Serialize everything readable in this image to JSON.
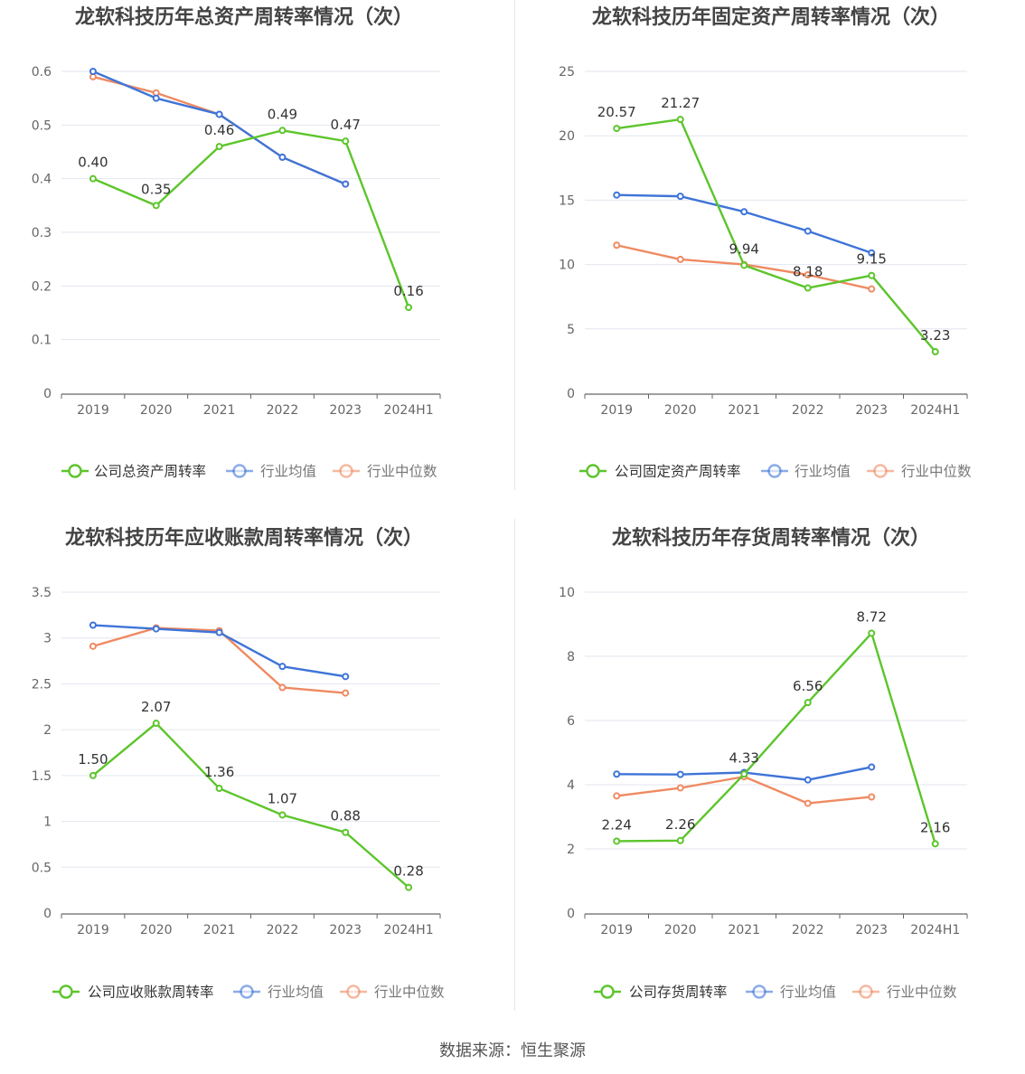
{
  "footer": "数据来源：恒生聚源",
  "colors": {
    "company": "#5cc52b",
    "avg": "#3e74d8",
    "median": "#ef8a62"
  },
  "chart_data": [
    {
      "type": "line",
      "title": "龙软科技历年总资产周转率情况（次）",
      "categories": [
        "2019",
        "2020",
        "2021",
        "2022",
        "2023",
        "2024H1"
      ],
      "ylim": [
        0,
        0.6
      ],
      "yticks": [
        0,
        0.1,
        0.2,
        0.3,
        0.4,
        0.5,
        0.6
      ],
      "ytick_labels": [
        "0",
        "0.1",
        "0.2",
        "0.3",
        "0.4",
        "0.5",
        "0.6"
      ],
      "legend_position": "bottom",
      "series": [
        {
          "name": "公司总资产周转率",
          "color": "#5cc52b",
          "values": [
            0.4,
            0.35,
            0.46,
            0.49,
            0.47,
            0.16
          ],
          "labels": [
            "0.40",
            "0.35",
            "0.46",
            "0.49",
            "0.47",
            "0.16"
          ]
        },
        {
          "name": "行业均值",
          "color": "#3e74d8",
          "values": [
            0.6,
            0.55,
            0.52,
            0.44,
            0.39,
            null
          ]
        },
        {
          "name": "行业中位数",
          "color": "#ef8a62",
          "values": [
            0.59,
            0.56,
            0.52,
            0.44,
            0.39,
            null
          ]
        }
      ]
    },
    {
      "type": "line",
      "title": "龙软科技历年固定资产周转率情况（次）",
      "categories": [
        "2019",
        "2020",
        "2021",
        "2022",
        "2023",
        "2024H1"
      ],
      "ylim": [
        0,
        25
      ],
      "yticks": [
        0,
        5,
        10,
        15,
        20,
        25
      ],
      "ytick_labels": [
        "0",
        "5",
        "10",
        "15",
        "20",
        "25"
      ],
      "legend_position": "bottom",
      "series": [
        {
          "name": "公司固定资产周转率",
          "color": "#5cc52b",
          "values": [
            20.57,
            21.27,
            9.94,
            8.18,
            9.15,
            3.23
          ],
          "labels": [
            "20.57",
            "21.27",
            "9.94",
            "8.18",
            "9.15",
            "3.23"
          ]
        },
        {
          "name": "行业均值",
          "color": "#3e74d8",
          "values": [
            15.4,
            15.3,
            14.1,
            12.6,
            10.9,
            null
          ]
        },
        {
          "name": "行业中位数",
          "color": "#ef8a62",
          "values": [
            11.5,
            10.4,
            10.0,
            9.2,
            8.1,
            null
          ]
        }
      ]
    },
    {
      "type": "line",
      "title": "龙软科技历年应收账款周转率情况（次）",
      "categories": [
        "2019",
        "2020",
        "2021",
        "2022",
        "2023",
        "2024H1"
      ],
      "ylim": [
        0,
        3.5
      ],
      "yticks": [
        0,
        0.5,
        1,
        1.5,
        2,
        2.5,
        3,
        3.5
      ],
      "ytick_labels": [
        "0",
        "0.5",
        "1",
        "1.5",
        "2",
        "2.5",
        "3",
        "3.5"
      ],
      "legend_position": "bottom",
      "series": [
        {
          "name": "公司应收账款周转率",
          "color": "#5cc52b",
          "values": [
            1.5,
            2.07,
            1.36,
            1.07,
            0.88,
            0.28
          ],
          "labels": [
            "1.50",
            "2.07",
            "1.36",
            "1.07",
            "0.88",
            "0.28"
          ]
        },
        {
          "name": "行业均值",
          "color": "#3e74d8",
          "values": [
            3.14,
            3.1,
            3.06,
            2.69,
            2.58,
            null
          ]
        },
        {
          "name": "行业中位数",
          "color": "#ef8a62",
          "values": [
            2.91,
            3.11,
            3.08,
            2.46,
            2.4,
            null
          ]
        }
      ]
    },
    {
      "type": "line",
      "title": "龙软科技历年存货周转率情况（次）",
      "categories": [
        "2019",
        "2020",
        "2021",
        "2022",
        "2023",
        "2024H1"
      ],
      "ylim": [
        0,
        10
      ],
      "yticks": [
        0,
        2,
        4,
        6,
        8,
        10
      ],
      "ytick_labels": [
        "0",
        "2",
        "4",
        "6",
        "8",
        "10"
      ],
      "legend_position": "bottom",
      "series": [
        {
          "name": "公司存货周转率",
          "color": "#5cc52b",
          "values": [
            2.24,
            2.26,
            4.33,
            6.56,
            8.72,
            2.16
          ],
          "labels": [
            "2.24",
            "2.26",
            "4.33",
            "6.56",
            "8.72",
            "2.16"
          ]
        },
        {
          "name": "行业均值",
          "color": "#3e74d8",
          "values": [
            4.33,
            4.32,
            4.38,
            4.15,
            4.55,
            null
          ]
        },
        {
          "name": "行业中位数",
          "color": "#ef8a62",
          "values": [
            3.65,
            3.9,
            4.25,
            3.42,
            3.62,
            null
          ]
        }
      ]
    }
  ]
}
